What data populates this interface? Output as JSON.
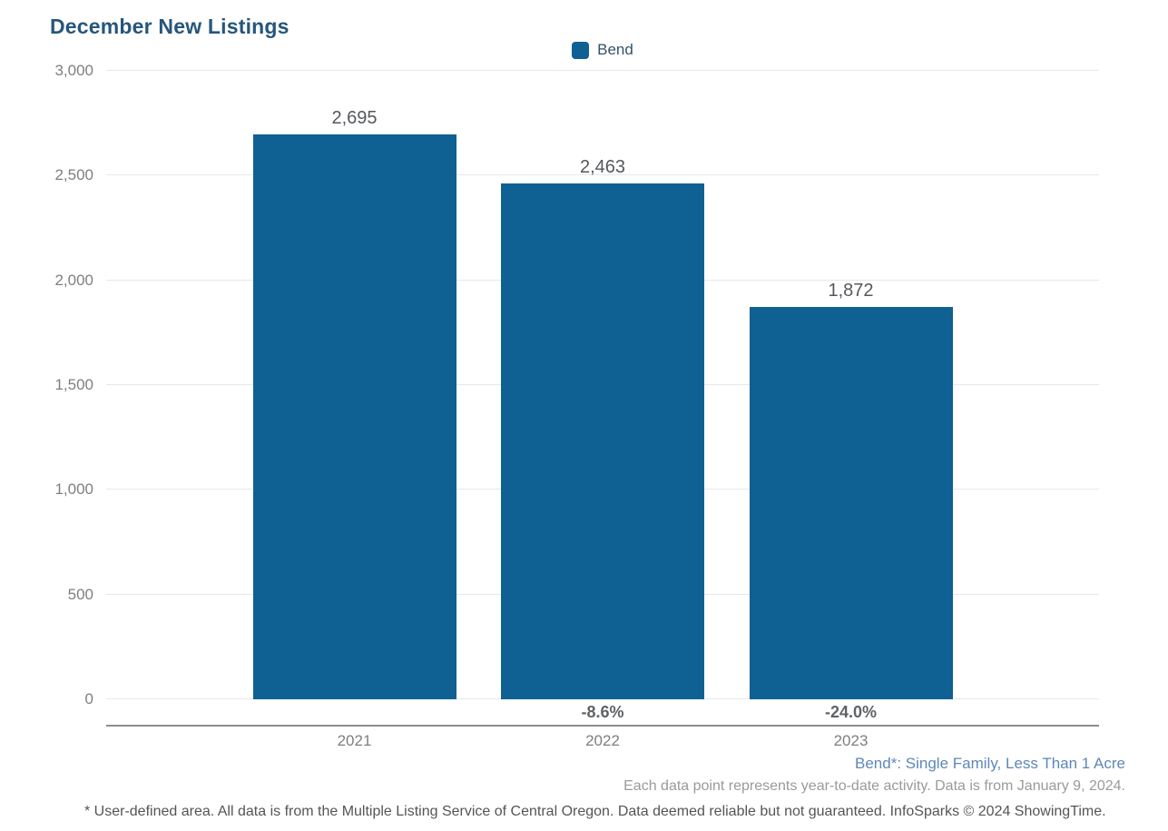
{
  "title": "December New Listings",
  "legend": {
    "label": "Bend"
  },
  "chart_data": {
    "type": "bar",
    "title": "December New Listings",
    "series_name": "Bend",
    "categories": [
      "2021",
      "2022",
      "2023"
    ],
    "values": [
      2695,
      2463,
      1872
    ],
    "value_labels": [
      "2,695",
      "2,463",
      "1,872"
    ],
    "pct_change_labels": [
      "",
      "-8.6%",
      "-24.0%"
    ],
    "ylim": [
      0,
      3000
    ],
    "yticks": [
      0,
      500,
      1000,
      1500,
      2000,
      2500,
      3000
    ],
    "ytick_labels": [
      "0",
      "500",
      "1,000",
      "1,500",
      "2,000",
      "2,500",
      "3,000"
    ],
    "bar_color": "#0e6192",
    "grid": true,
    "legend_position": "top-center"
  },
  "footnotes": {
    "area_definition": "Bend*: Single Family, Less Than 1 Acre",
    "data_note": "Each data point represents year-to-date activity. Data is from January 9, 2024.",
    "disclaimer": "* User-defined area. All data is from the Multiple Listing Service of Central Oregon. Data deemed reliable but not guaranteed. InfoSparks © 2024 ShowingTime."
  }
}
